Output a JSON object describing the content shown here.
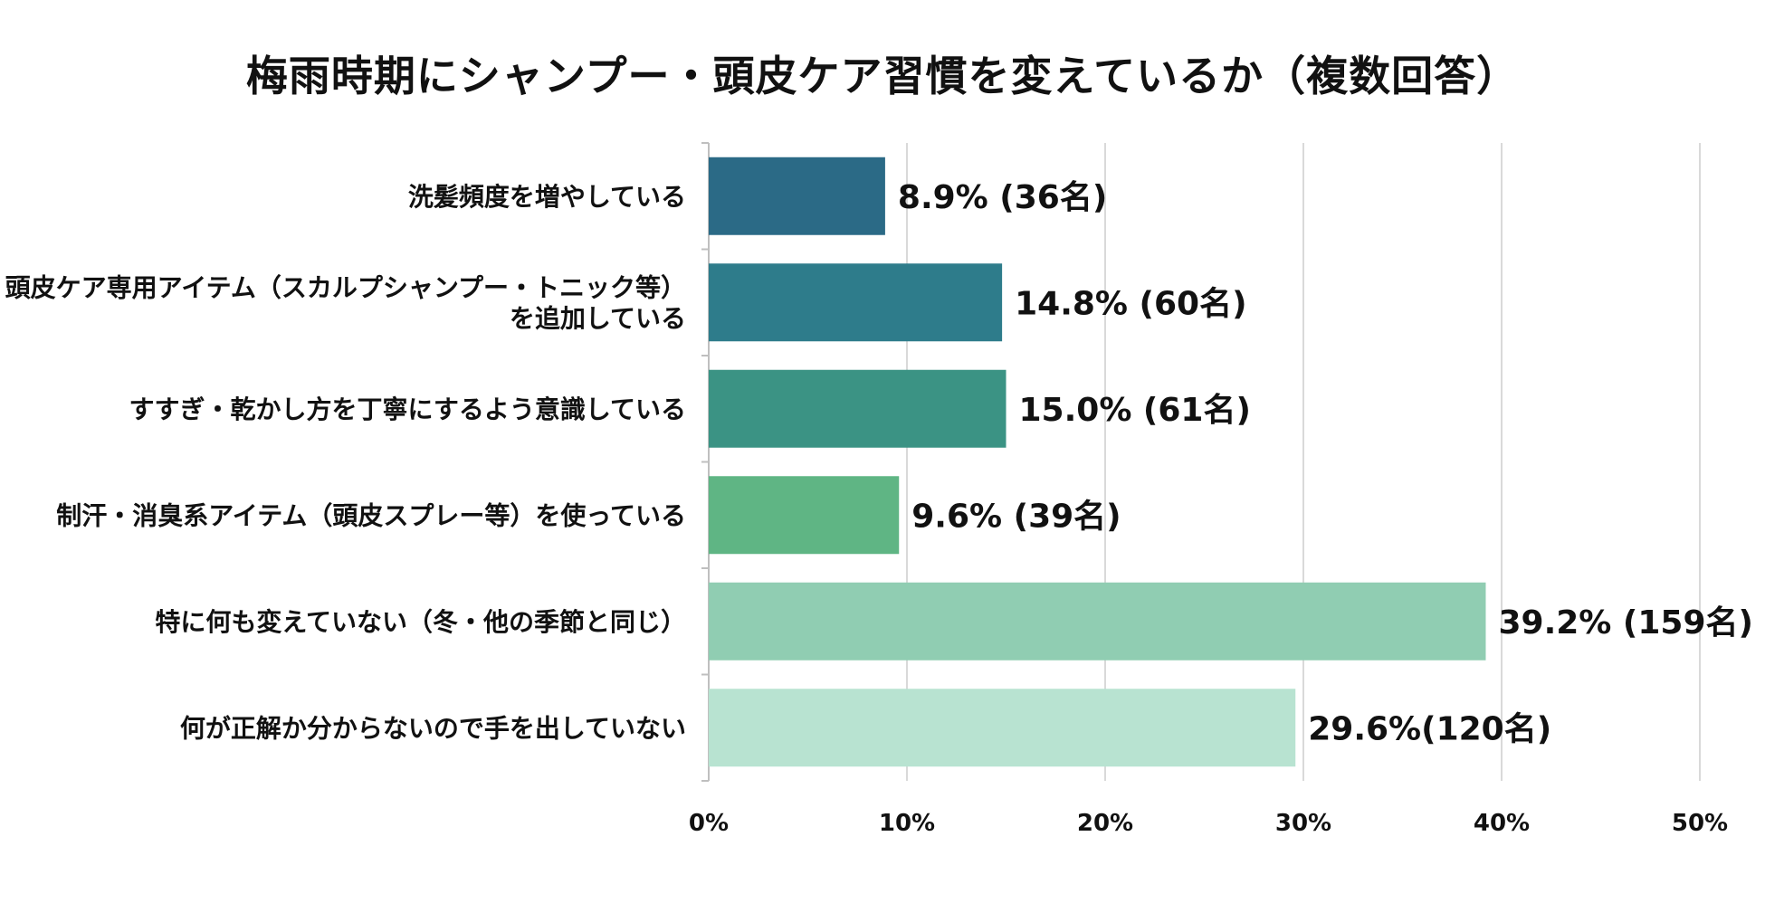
{
  "chart_data": {
    "type": "bar",
    "orientation": "horizontal",
    "title": "梅雨時期にシャンプー・頭皮ケア習慣を変えているか（複数回答）",
    "xlabel": "",
    "ylabel": "",
    "xlim": [
      0,
      50
    ],
    "x_ticks": [
      "0%",
      "10%",
      "20%",
      "30%",
      "40%",
      "50%"
    ],
    "grid": true,
    "categories": [
      [
        "洗髪頻度を増やしている"
      ],
      [
        "頭皮ケア専用アイテム（スカルプシャンプー・トニック等）",
        "を追加している"
      ],
      [
        "すすぎ・乾かし方を丁寧にするよう意識している"
      ],
      [
        "制汗・消臭系アイテム（頭皮スプレー等）を使っている"
      ],
      [
        "特に何も変えていない（冬・他の季節と同じ）"
      ],
      [
        "何が正解か分からないので手を出していない"
      ]
    ],
    "values": [
      8.9,
      14.8,
      15.0,
      9.6,
      39.2,
      29.6
    ],
    "value_labels": [
      "8.9% (36名)",
      "14.8% (60名)",
      "15.0% (61名)",
      "9.6% (39名)",
      "39.2% (159名)",
      "29.6%(120名)"
    ],
    "colors": [
      "#2b6a86",
      "#2e7c8b",
      "#3b9384",
      "#5fb584",
      "#90cdb2",
      "#b8e3d1"
    ]
  }
}
